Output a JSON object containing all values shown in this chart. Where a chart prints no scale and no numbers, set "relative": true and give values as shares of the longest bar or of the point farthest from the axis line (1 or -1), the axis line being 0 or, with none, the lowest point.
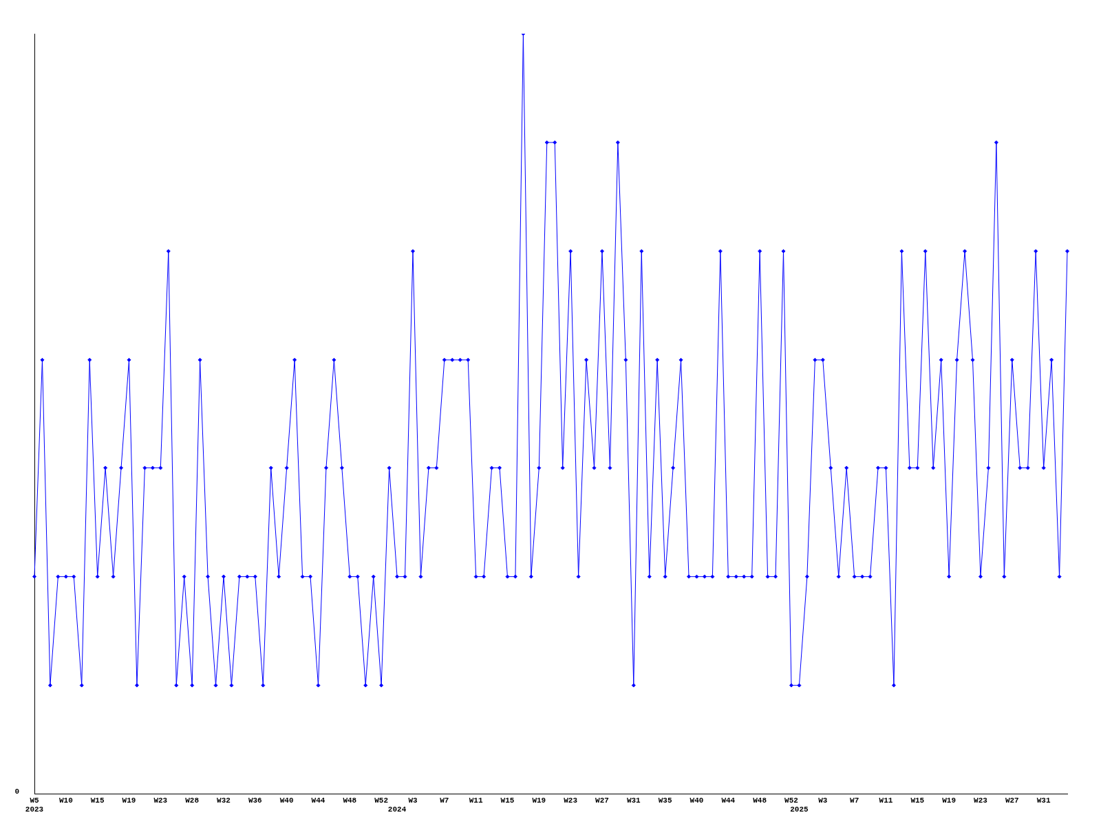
{
  "chart_data": {
    "type": "line",
    "relative": true,
    "categories": [
      "W5\n2023",
      null,
      null,
      null,
      "W10",
      null,
      null,
      null,
      "W15",
      null,
      null,
      null,
      "W19",
      null,
      null,
      null,
      "W23",
      null,
      null,
      null,
      "W28",
      null,
      null,
      null,
      "W32",
      null,
      null,
      null,
      "W36",
      null,
      null,
      null,
      "W40",
      null,
      null,
      null,
      "W44",
      null,
      null,
      null,
      "W48",
      null,
      null,
      null,
      "W52",
      null,
      "\n2024",
      null,
      "W3",
      null,
      null,
      null,
      "W7",
      null,
      null,
      null,
      "W11",
      null,
      null,
      null,
      "W15",
      null,
      null,
      null,
      "W19",
      null,
      null,
      null,
      "W23",
      null,
      null,
      null,
      "W27",
      null,
      null,
      null,
      "W31",
      null,
      null,
      null,
      "W35",
      null,
      null,
      null,
      "W40",
      null,
      null,
      null,
      "W44",
      null,
      null,
      null,
      "W48",
      null,
      null,
      null,
      "W52",
      "\n2025",
      null,
      null,
      "W3",
      null,
      null,
      null,
      "W7",
      null,
      null,
      null,
      "W11",
      null,
      null,
      null,
      "W15",
      null,
      null,
      null,
      "W19",
      null,
      null,
      null,
      "W23",
      null,
      null,
      null,
      "W27",
      null,
      null,
      null,
      "W31",
      null,
      null,
      null
    ],
    "series": [
      {
        "color": "#0000ff",
        "values": [
          0.286,
          0.571,
          0.143,
          0.286,
          0.286,
          0.286,
          0.143,
          0.571,
          0.286,
          0.429,
          0.286,
          0.429,
          0.571,
          0.143,
          0.429,
          0.429,
          0.429,
          0.714,
          0.143,
          0.286,
          0.143,
          0.571,
          0.286,
          0.143,
          0.286,
          0.143,
          0.286,
          0.286,
          0.286,
          0.143,
          0.429,
          0.286,
          0.429,
          0.571,
          0.286,
          0.286,
          0.143,
          0.429,
          0.571,
          0.429,
          0.286,
          0.286,
          0.143,
          0.286,
          0.143,
          0.429,
          0.286,
          0.286,
          0.714,
          0.286,
          0.429,
          0.429,
          0.571,
          0.571,
          0.571,
          0.571,
          0.286,
          0.286,
          0.429,
          0.429,
          0.286,
          0.286,
          1,
          0.286,
          0.429,
          0.857,
          0.857,
          0.429,
          0.714,
          0.286,
          0.571,
          0.429,
          0.714,
          0.429,
          0.857,
          0.571,
          0.143,
          0.714,
          0.286,
          0.571,
          0.286,
          0.429,
          0.571,
          0.286,
          0.286,
          0.286,
          0.286,
          0.714,
          0.286,
          0.286,
          0.286,
          0.286,
          0.714,
          0.286,
          0.286,
          0.714,
          0.143,
          0.143,
          0.286,
          0.571,
          0.571,
          0.429,
          0.286,
          0.429,
          0.286,
          0.286,
          0.286,
          0.429,
          0.429,
          0.143,
          0.714,
          0.429,
          0.429,
          0.714,
          0.429,
          0.571,
          0.286,
          0.571,
          0.714,
          0.571,
          0.286,
          0.429,
          0.857,
          0.286,
          0.571,
          0.429,
          0.429,
          0.714,
          0.429,
          0.571,
          0.286,
          0.714
        ]
      }
    ],
    "annotations": [
      "0"
    ],
    "marker": "diamond",
    "grid": false,
    "legend": false
  }
}
